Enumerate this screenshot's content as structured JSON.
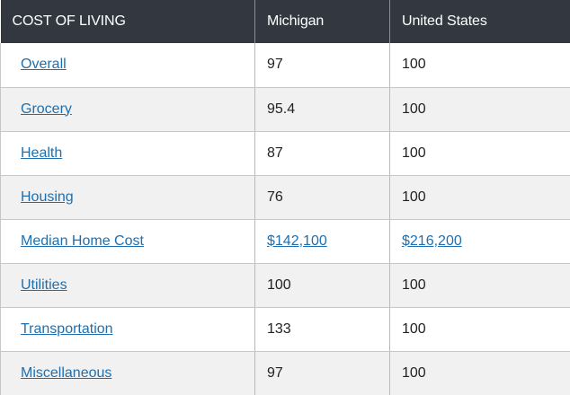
{
  "table": {
    "headers": [
      "COST OF LIVING",
      "Michigan",
      "United States"
    ],
    "rows": [
      {
        "label": "Overall",
        "michigan": "97",
        "us": "100"
      },
      {
        "label": "Grocery",
        "michigan": "95.4",
        "us": "100"
      },
      {
        "label": "Health",
        "michigan": "87",
        "us": "100"
      },
      {
        "label": "Housing",
        "michigan": "76",
        "us": "100"
      },
      {
        "label": "Median Home Cost",
        "michigan": "$142,100",
        "us": "$216,200",
        "values_are_links": true
      },
      {
        "label": "Utilities",
        "michigan": "100",
        "us": "100"
      },
      {
        "label": "Transportation",
        "michigan": "133",
        "us": "100"
      },
      {
        "label": "Miscellaneous",
        "michigan": "97",
        "us": "100"
      }
    ]
  },
  "colors": {
    "header_bg": "#333840",
    "header_text": "#ffffff",
    "link": "#1f6fae",
    "row_alt_bg": "#f1f1f1"
  }
}
